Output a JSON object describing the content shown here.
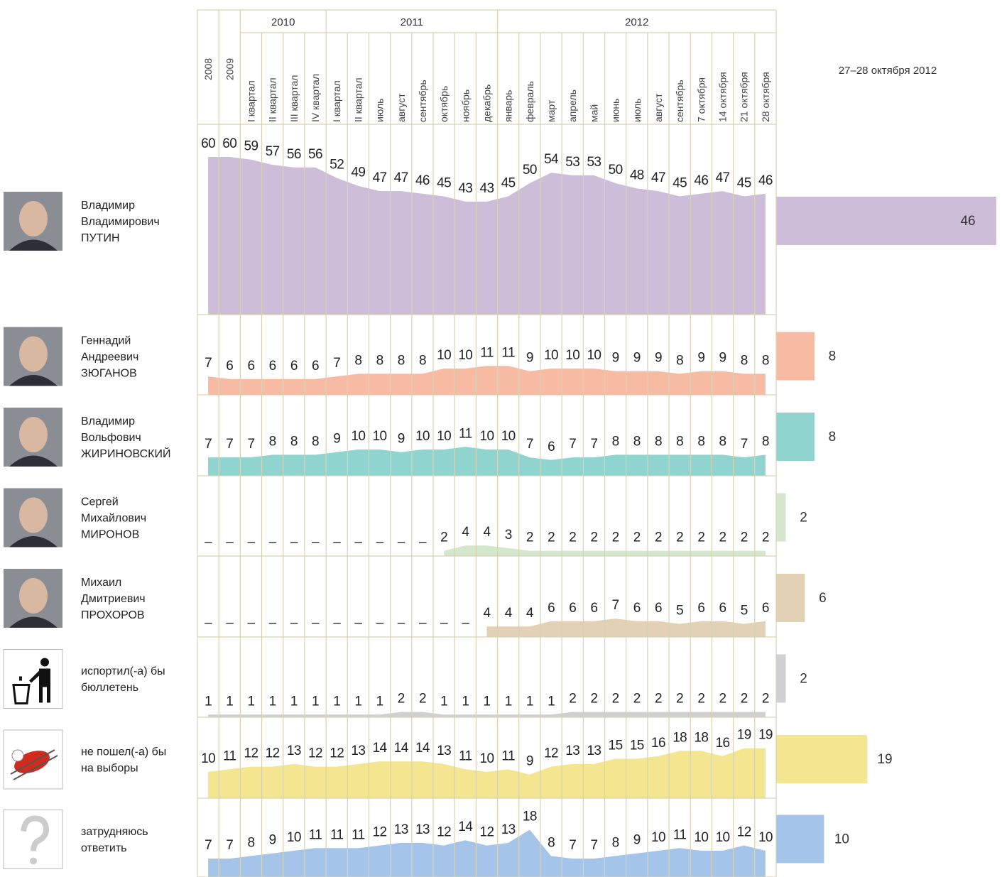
{
  "chart_data": {
    "type": "area",
    "categories": [
      "2008",
      "2009",
      "I квартал",
      "II квартал",
      "III квартал",
      "IV квартал",
      "I квартал",
      "II квартал",
      "июль",
      "август",
      "сентябрь",
      "октябрь",
      "ноябрь",
      "декабрь",
      "январь",
      "февраль",
      "март",
      "апрель",
      "май",
      "июнь",
      "июль",
      "август",
      "сентябрь",
      "7 октября",
      "14 октября",
      "21 октября",
      "28 октября"
    ],
    "category_years": [
      null,
      null,
      "2010",
      "2010",
      "2010",
      "2010",
      "2011",
      "2011",
      "2011",
      "2011",
      "2011",
      "2011",
      "2011",
      "2011",
      "2012",
      "2012",
      "2012",
      "2012",
      "2012",
      "2012",
      "2012",
      "2012",
      "2012",
      "2012",
      "2012",
      "2012",
      "2012"
    ],
    "missing_label": "–",
    "latest_title": "27–28 октября 2012",
    "series": [
      {
        "name": [
          "Владимир",
          "Владимирович",
          "ПУТИН"
        ],
        "icon": "photo",
        "color": "#cdbdd8",
        "latest": 46,
        "values": [
          60,
          60,
          59,
          57,
          56,
          56,
          52,
          49,
          47,
          47,
          46,
          45,
          43,
          43,
          45,
          50,
          54,
          53,
          53,
          50,
          48,
          47,
          45,
          46,
          47,
          45,
          46
        ]
      },
      {
        "name": [
          "Геннадий",
          "Андреевич",
          "ЗЮГАНОВ"
        ],
        "icon": "photo",
        "color": "#f7bba4",
        "latest": 8,
        "values": [
          7,
          6,
          6,
          6,
          6,
          6,
          7,
          8,
          8,
          8,
          8,
          10,
          10,
          11,
          11,
          9,
          10,
          10,
          10,
          9,
          9,
          9,
          8,
          9,
          9,
          8,
          8
        ]
      },
      {
        "name": [
          "Владимир",
          "Вольфович",
          "ЖИРИНОВСКИЙ"
        ],
        "icon": "photo",
        "color": "#8fd4ce",
        "latest": 8,
        "values": [
          7,
          7,
          7,
          8,
          8,
          8,
          9,
          10,
          10,
          9,
          10,
          10,
          11,
          10,
          10,
          7,
          6,
          7,
          7,
          8,
          8,
          8,
          8,
          8,
          8,
          7,
          8
        ]
      },
      {
        "name": [
          "Сергей",
          "Михайлович",
          "МИРОНОВ"
        ],
        "icon": "photo",
        "color": "#d4e7cd",
        "latest": 2,
        "values": [
          null,
          null,
          null,
          null,
          null,
          null,
          null,
          null,
          null,
          null,
          null,
          2,
          4,
          4,
          3,
          2,
          2,
          2,
          2,
          2,
          2,
          2,
          2,
          2,
          2,
          2,
          2
        ]
      },
      {
        "name": [
          "Михаил",
          "Дмитриевич",
          "ПРОХОРОВ"
        ],
        "icon": "photo",
        "color": "#e3d1b6",
        "latest": 6,
        "values": [
          null,
          null,
          null,
          null,
          null,
          null,
          null,
          null,
          null,
          null,
          null,
          null,
          null,
          4,
          4,
          4,
          6,
          6,
          6,
          7,
          6,
          6,
          5,
          6,
          6,
          5,
          6
        ]
      },
      {
        "name": [
          "испортил(-а) бы",
          "бюллетень"
        ],
        "icon": "trash",
        "color": "#d0d0d0",
        "latest": 2,
        "values": [
          1,
          1,
          1,
          1,
          1,
          1,
          1,
          1,
          1,
          2,
          2,
          1,
          1,
          1,
          1,
          1,
          1,
          2,
          2,
          2,
          2,
          2,
          2,
          2,
          2,
          2,
          2
        ]
      },
      {
        "name": [
          "не пошел(-а) бы",
          "на выборы"
        ],
        "icon": "grill",
        "color": "#f4e590",
        "latest": 19,
        "values": [
          10,
          11,
          12,
          12,
          13,
          12,
          12,
          13,
          14,
          14,
          14,
          13,
          11,
          10,
          11,
          9,
          12,
          13,
          13,
          15,
          15,
          16,
          18,
          18,
          16,
          19,
          19
        ]
      },
      {
        "name": [
          "затрудняюсь",
          "ответить"
        ],
        "icon": "question",
        "color": "#a4c5e9",
        "latest": 10,
        "values": [
          7,
          7,
          8,
          9,
          10,
          11,
          11,
          11,
          12,
          13,
          13,
          12,
          14,
          12,
          13,
          18,
          8,
          7,
          7,
          8,
          9,
          10,
          11,
          10,
          10,
          12,
          10
        ]
      }
    ]
  }
}
